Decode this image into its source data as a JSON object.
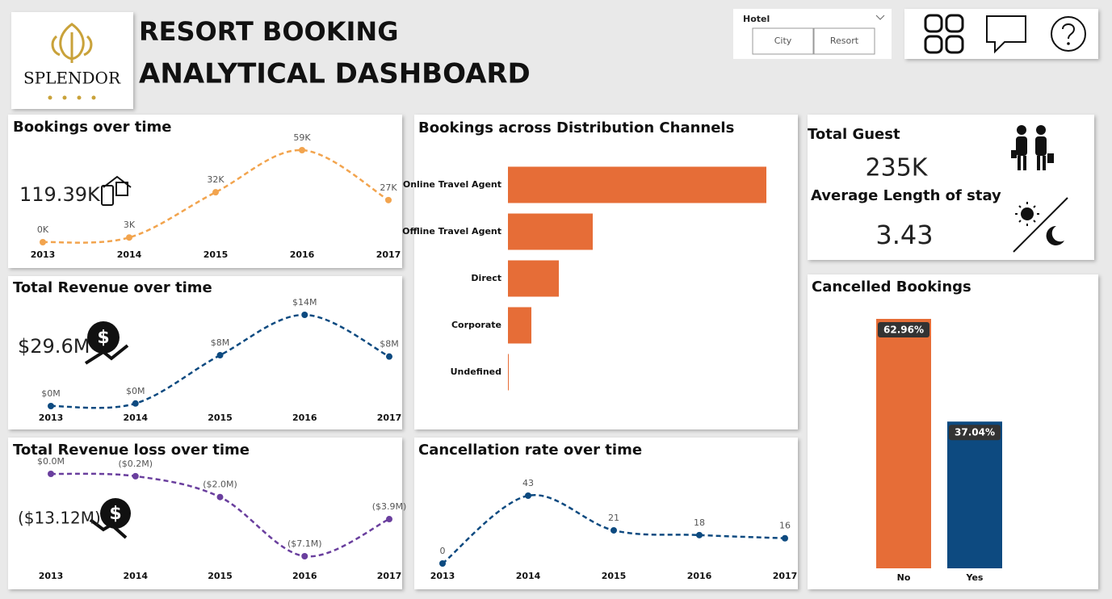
{
  "header": {
    "logo_text": "SPLENDOR",
    "title_line1": "RESORT BOOKING",
    "title_line2": "ANALYTICAL DASHBOARD"
  },
  "slicer": {
    "title": "Hotel",
    "options": [
      "City",
      "Resort"
    ]
  },
  "cards": {
    "total_guest_label": "Total Guest",
    "total_guest_value": "235K",
    "avg_stay_label": "Average Length of stay",
    "avg_stay_value": "3.43"
  },
  "chart_data": [
    {
      "type": "line",
      "title": "Bookings over time",
      "annotation": "119.39K",
      "color": "#f2a44e",
      "categories": [
        "2013",
        "2014",
        "2015",
        "2016",
        "2017"
      ],
      "values": [
        0,
        3000,
        32000,
        59000,
        27000
      ],
      "value_labels": [
        "0K",
        "3K",
        "32K",
        "59K",
        "27K"
      ]
    },
    {
      "type": "line",
      "title": "Total Revenue over time",
      "annotation": "$29.6M",
      "color": "#0d4a80",
      "categories": [
        "2013",
        "2014",
        "2015",
        "2016",
        "2017"
      ],
      "values": [
        0,
        400000,
        7800000,
        14000000,
        7600000
      ],
      "value_labels": [
        "$0M",
        "$0M",
        "$8M",
        "$14M",
        "$8M"
      ]
    },
    {
      "type": "line",
      "title": "Total Revenue loss over time",
      "annotation": "($13.12M)",
      "color": "#6a3f9e",
      "categories": [
        "2013",
        "2014",
        "2015",
        "2016",
        "2017"
      ],
      "values": [
        0,
        -200000,
        -2000000,
        -7100000,
        -3900000
      ],
      "value_labels": [
        "$0.0M",
        "($0.2M)",
        "($2.0M)",
        "($7.1M)",
        "($3.9M)"
      ]
    },
    {
      "type": "hbar",
      "title": "Bookings across Distribution Channels",
      "color": "#e66d37",
      "categories": [
        "Online Travel Agent",
        "Offline Travel Agent",
        "Direct",
        "Corporate",
        "Undefined"
      ],
      "values": [
        64000,
        21000,
        12600,
        5800,
        200
      ]
    },
    {
      "type": "line",
      "title": "Cancellation rate over time",
      "color": "#0d4a80",
      "categories": [
        "2013",
        "2014",
        "2015",
        "2016",
        "2017"
      ],
      "values": [
        0,
        43,
        21,
        18,
        16
      ]
    },
    {
      "type": "vbar",
      "title": "Cancelled Bookings",
      "colors": [
        "#e66d37",
        "#0d4a80"
      ],
      "categories": [
        "No",
        "Yes"
      ],
      "values": [
        62.96,
        37.04
      ],
      "value_labels": [
        "62.96%",
        "37.04%"
      ]
    }
  ]
}
